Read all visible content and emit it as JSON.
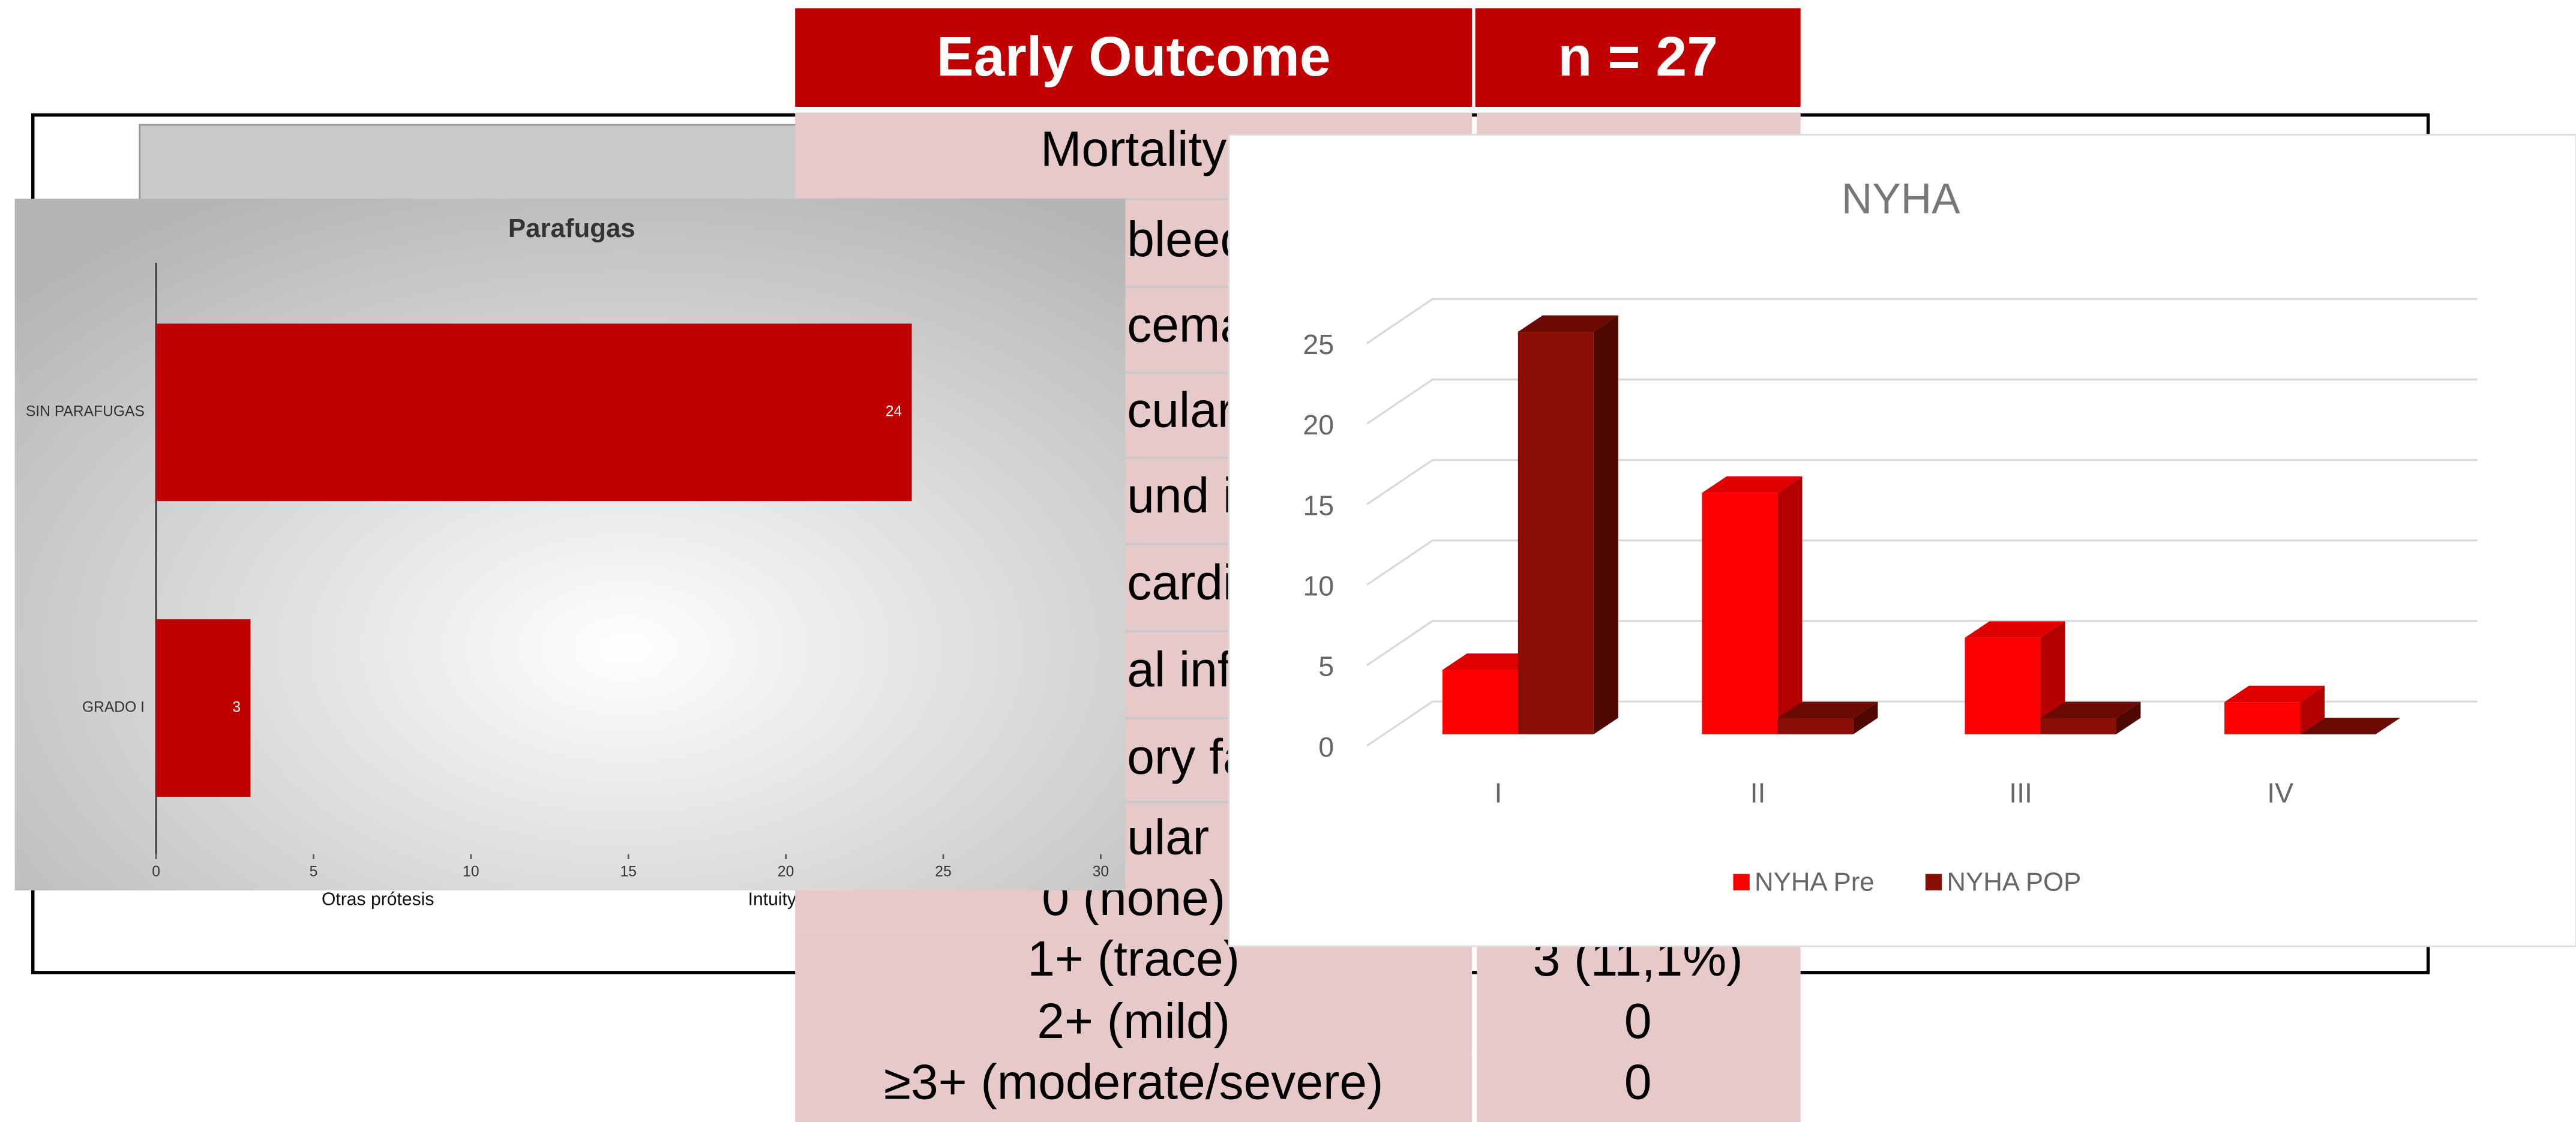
{
  "background_chart": {
    "categories": [
      "Otras prótesis",
      "Intuity"
    ]
  },
  "table": {
    "header": [
      "Early Outcome",
      "n = 27"
    ],
    "rows": [
      [
        "Mortality"
      ],
      [
        "bleed"
      ],
      [
        "cema"
      ],
      [
        "cular"
      ],
      [
        "und i"
      ],
      [
        "cardi"
      ],
      [
        "al infa"
      ],
      [
        "ory fa"
      ],
      [
        "ular"
      ],
      [
        "0 (none)"
      ],
      [
        "1+ (trace)",
        "3 (11,1%)"
      ],
      [
        "2+ (mild)",
        "0"
      ],
      [
        "≥3+ (moderate/severe)",
        "0"
      ]
    ]
  },
  "chart_data": [
    {
      "type": "hbar",
      "title": "Parafugas",
      "categories": [
        "SIN PARAFUGAS",
        "GRADO I"
      ],
      "values": [
        24,
        3
      ],
      "color": "#c00000",
      "xlim": [
        0,
        30
      ],
      "xticks": [
        0,
        5,
        10,
        15,
        20,
        25,
        30
      ]
    },
    {
      "type": "bar3d",
      "title": "NYHA",
      "categories": [
        "I",
        "II",
        "III",
        "IV"
      ],
      "series": [
        {
          "name": "NYHA Pre",
          "color": "#ff0000",
          "values": [
            4,
            15,
            6,
            2
          ]
        },
        {
          "name": "NYHA POP",
          "color": "#8b0e04",
          "values": [
            25,
            1,
            1,
            0
          ]
        }
      ],
      "ylim": [
        0,
        25
      ],
      "yticks": [
        0,
        5,
        10,
        15,
        20,
        25
      ],
      "grid": true,
      "legend": "bottom"
    }
  ]
}
